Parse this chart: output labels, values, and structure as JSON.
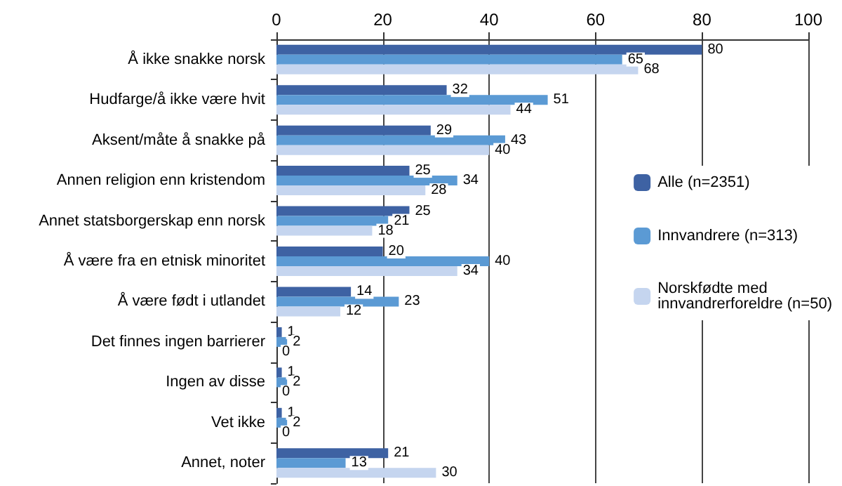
{
  "chart_data": {
    "type": "bar",
    "orientation": "horizontal",
    "categories": [
      "Å ikke snakke norsk",
      "Hudfarge/å ikke være hvit",
      "Aksent/måte å snakke på",
      "Annen religion enn kristendom",
      "Annet statsborgerskap enn norsk",
      "Å være fra en etnisk minoritet",
      "Å være født i utlandet",
      "Det finnes ingen barrierer",
      "Ingen av disse",
      "Vet ikke",
      "Annet, noter"
    ],
    "series": [
      {
        "name": "Alle (n=2351)",
        "color": "#3e62a3",
        "values": [
          80,
          32,
          29,
          25,
          25,
          20,
          14,
          1,
          1,
          1,
          21
        ]
      },
      {
        "name": "Innvandrere (n=313)",
        "color": "#5b9ad4",
        "values": [
          65,
          51,
          43,
          34,
          21,
          40,
          23,
          2,
          2,
          2,
          13
        ]
      },
      {
        "name": "Norskfødte med innvandrerforeldre (n=50)",
        "color": "#c5d5ef",
        "values": [
          68,
          44,
          40,
          28,
          18,
          34,
          12,
          0,
          0,
          0,
          30
        ]
      }
    ],
    "xlim": [
      0,
      100
    ],
    "xticks": [
      0,
      20,
      40,
      60,
      80,
      100
    ],
    "grid": "x",
    "legend": "right",
    "data_labels": true
  }
}
